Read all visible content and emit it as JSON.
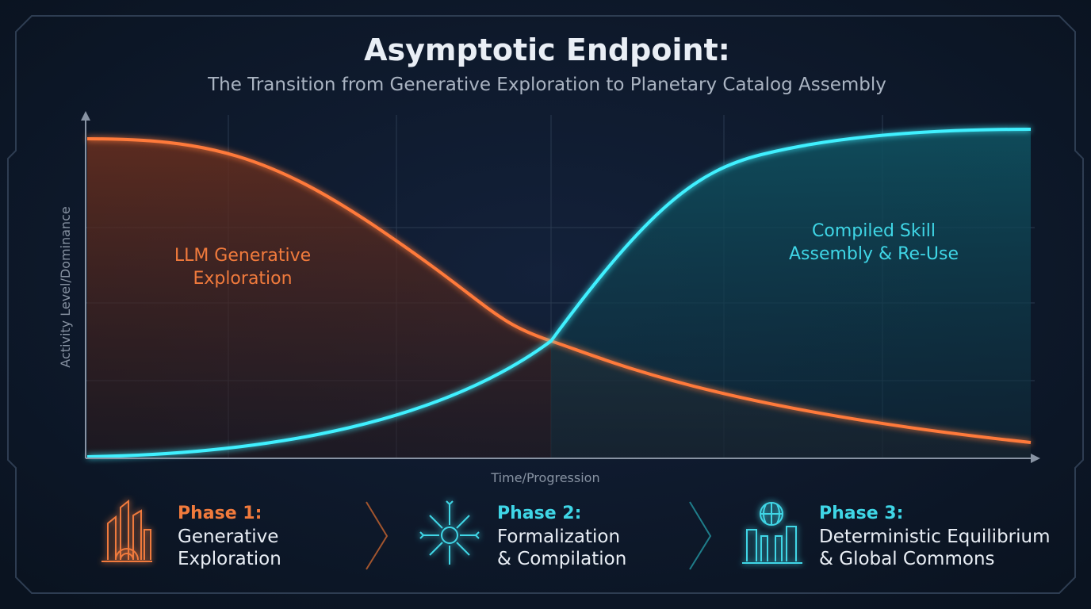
{
  "header": {
    "title": "Asymptotic Endpoint:",
    "subtitle": "The Transition from Generative Exploration to Planetary Catalog Assembly"
  },
  "chart": {
    "y_label": "Activity Level/Dominance",
    "x_label": "Time/Progression",
    "labels": [
      {
        "lines": [
          "LLM Generative",
          "Exploration"
        ]
      },
      {
        "lines": [
          "Compiled Skill",
          "Assembly & Re-Use"
        ]
      }
    ]
  },
  "phases": [
    {
      "title": "Phase 1:",
      "lines": [
        "Generative",
        "Exploration"
      ]
    },
    {
      "title": "Phase 2:",
      "lines": [
        "Formalization",
        "& Compilation"
      ]
    },
    {
      "title": "Phase 3:",
      "lines": [
        "Deterministic Equilibrium",
        "& Global Commons"
      ]
    }
  ]
}
